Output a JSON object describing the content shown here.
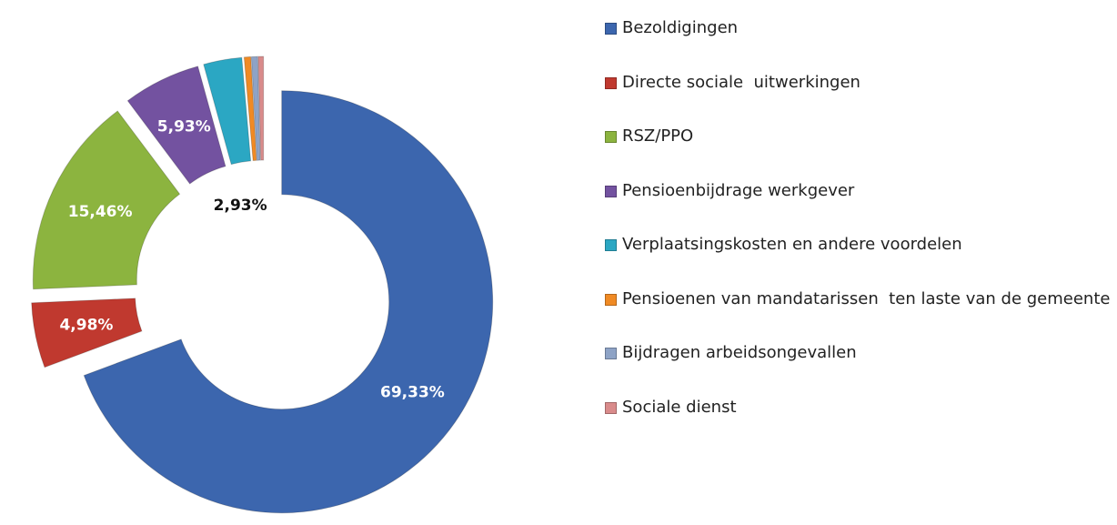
{
  "chart_data": {
    "type": "donut",
    "categories": [
      "Bezoldigingen",
      "Directe sociale  uitwerkingen",
      "RSZ/PPO",
      "Pensioenbijdrage werkgever",
      "Verplaatsingskosten en andere voordelen",
      "Pensioenen van mandatarissen  ten laste van de gemeente",
      "Bijdragen arbeidsongevallen",
      "Sociale dienst"
    ],
    "values": [
      69.33,
      4.98,
      15.46,
      5.93,
      2.93,
      0.5,
      0.47,
      0.4
    ],
    "value_labels": [
      "69,33%",
      "4,98%",
      "15,46%",
      "5,93%",
      "2,93%",
      null,
      null,
      null
    ],
    "colors": [
      "#3c66ae",
      "#c0392f",
      "#8cb43f",
      "#7352a0",
      "#2ba7c3",
      "#f08a24",
      "#8ea3c6",
      "#d98b8b"
    ],
    "legend": "right"
  }
}
